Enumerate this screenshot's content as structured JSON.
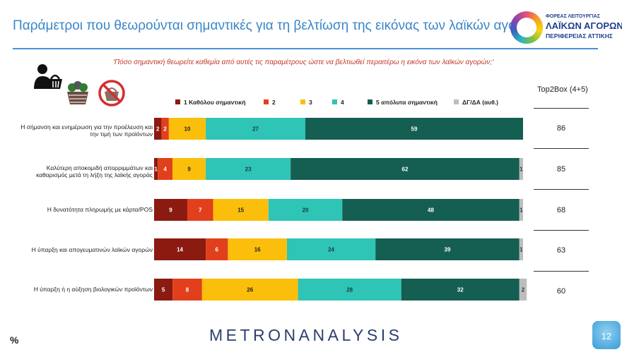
{
  "header": {
    "title": "Παράμετροι που θεωρούνται σημαντικές για τη βελτίωση της εικόνας των λαϊκών αγορών",
    "logo": {
      "line1": "ΦΟΡΕΑΣ ΛΕΙΤΟΥΡΓΙΑΣ",
      "line2": "ΛΑΪΚΩΝ ΑΓΟΡΩΝ",
      "line3": "ΠΕΡΙΦΕΡΕΙΑΣ ΑΤΤΙΚΗΣ"
    }
  },
  "question": "'Πόσο σημαντική θεωρείτε καθεμία από αυτές τις παραμέτρους ώστε να βελτιωθεί περαιτέρω η εικόνα των λαϊκών αγορών;'",
  "icons": [
    "shopper-with-basket-icon",
    "produce-basket-icon",
    "no-basket-icon"
  ],
  "top2box_title": "Top2Box (4+5)",
  "footer": {
    "unit": "%",
    "brand": "METRONANALYSIS",
    "page_number": "12"
  },
  "chart_data": {
    "type": "bar",
    "orientation": "horizontal",
    "stacked": true,
    "categories": [
      "Η σήμανση και ενημέρωση για την προέλευση και την τιμή των προϊόντων",
      "Καλύτερη αποκομιδή απορριμμάτων και καθαρισμός μετά τη λήξη της λαϊκής αγοράς",
      "Η δυνατότητα πληρωμής με κάρτα/POS",
      "Η ύπαρξη και απογευματινών λαϊκών αγορών",
      "Η ύπαρξη ή η αύξηση βιολογικών προϊόντων"
    ],
    "series": [
      {
        "name": "1 Καθόλου σημαντική",
        "color": "#8b1a10",
        "text_color": "#ffffff",
        "values": [
          2,
          1,
          9,
          14,
          5
        ]
      },
      {
        "name": "2",
        "color": "#e2401c",
        "text_color": "#ffffff",
        "values": [
          2,
          4,
          7,
          6,
          8
        ]
      },
      {
        "name": "3",
        "color": "#fbbf0b",
        "text_color": "#222222",
        "values": [
          10,
          9,
          15,
          16,
          26
        ]
      },
      {
        "name": "4",
        "color": "#2ec4b6",
        "text_color": "#1d3c3a",
        "values": [
          27,
          23,
          20,
          24,
          28
        ]
      },
      {
        "name": "5 απόλυτα σημαντική",
        "color": "#155e52",
        "text_color": "#ffffff",
        "values": [
          59,
          62,
          48,
          39,
          32
        ]
      },
      {
        "name": "ΔΓ/ΔΑ (αυθ.)",
        "color": "#bdbdbd",
        "text_color": "#333333",
        "values": [
          0,
          1,
          1,
          1,
          2
        ]
      }
    ],
    "top2box": [
      86,
      85,
      68,
      63,
      60
    ],
    "xlim": [
      0,
      100
    ],
    "legend_position": "top"
  }
}
